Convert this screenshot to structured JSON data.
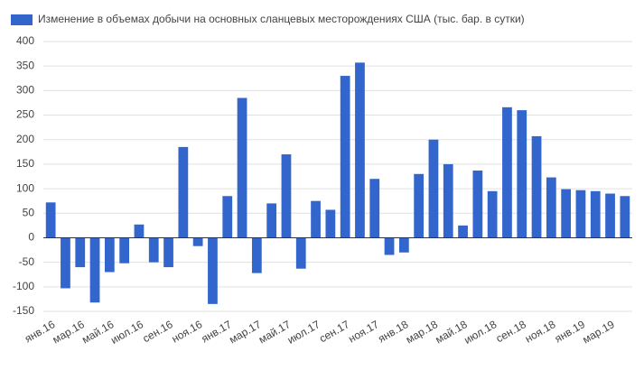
{
  "chart_data": {
    "type": "bar",
    "legend": "Изменение в объемах добычи на основных сланцевых месторождениях США (тыс. бар. в сутки)",
    "legend_position": "top-left",
    "color": "#3366cc",
    "grid": true,
    "categories": [
      "янв.16",
      null,
      "мар.16",
      null,
      "май.16",
      null,
      "июл.16",
      null,
      "сен.16",
      null,
      "ноя.16",
      null,
      "янв.17",
      null,
      "мар.17",
      null,
      "май.17",
      null,
      "июл.17",
      null,
      "сен.17",
      null,
      "ноя.17",
      null,
      "янв.18",
      null,
      "мар.18",
      null,
      "май.18",
      null,
      "июл.18",
      null,
      "сен.18",
      null,
      "ноя.18",
      null,
      "янв.19",
      null,
      "мар.19",
      null
    ],
    "values": [
      72,
      -103,
      -60,
      -132,
      -70,
      -52,
      27,
      -50,
      -60,
      185,
      -17,
      -135,
      85,
      285,
      -72,
      70,
      170,
      -63,
      75,
      57,
      330,
      357,
      120,
      -35,
      -30,
      130,
      200,
      150,
      25,
      137,
      95,
      266,
      260,
      207,
      123,
      99,
      97,
      95,
      90,
      85
    ],
    "ylim": [
      -150,
      400
    ],
    "yticks": [
      -150,
      -100,
      -50,
      0,
      50,
      100,
      150,
      200,
      250,
      300,
      350,
      400
    ]
  }
}
